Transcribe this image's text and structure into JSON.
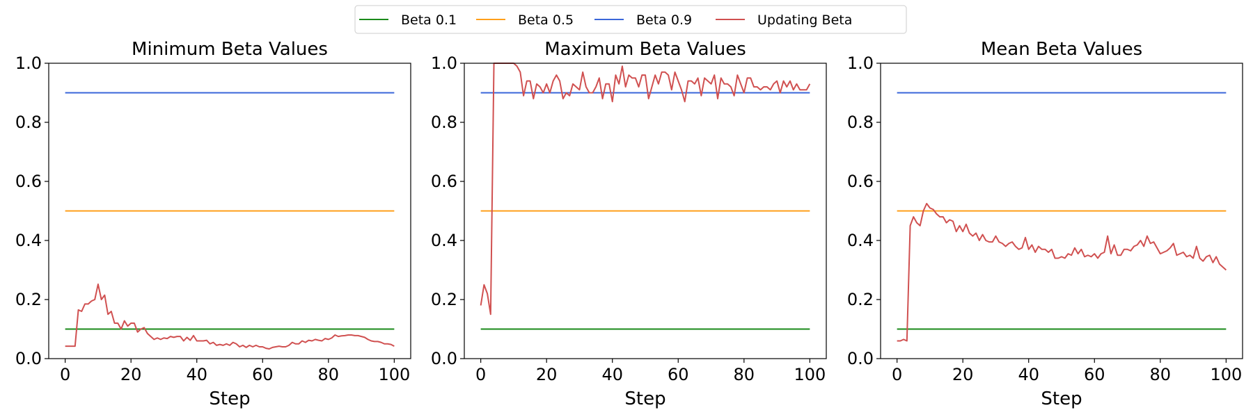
{
  "legend": {
    "placement": "top-center",
    "entries": [
      {
        "label": "Beta 0.1",
        "color": "#1a8a1a"
      },
      {
        "label": "Beta 0.5",
        "color": "#ff9f1a"
      },
      {
        "label": "Beta 0.9",
        "color": "#3a66d9"
      },
      {
        "label": "Updating Beta",
        "color": "#d05050"
      }
    ]
  },
  "chart_data": [
    {
      "type": "line",
      "title": "Minimum Beta Values",
      "xlabel": "Step",
      "ylabel": "",
      "xlim": [
        0,
        100
      ],
      "ylim": [
        0,
        1.0
      ],
      "xticks": [
        "0",
        "20",
        "40",
        "60",
        "80",
        "100"
      ],
      "yticks": [
        "0.0",
        "0.2",
        "0.4",
        "0.6",
        "0.8",
        "1.0"
      ],
      "grid": false,
      "series": [
        {
          "name": "Beta 0.1",
          "color": "#1a8a1a",
          "x": [
            0,
            100
          ],
          "y": [
            0.1,
            0.1
          ]
        },
        {
          "name": "Beta 0.5",
          "color": "#ff9f1a",
          "x": [
            0,
            100
          ],
          "y": [
            0.5,
            0.5
          ]
        },
        {
          "name": "Beta 0.9",
          "color": "#3a66d9",
          "x": [
            0,
            100
          ],
          "y": [
            0.9,
            0.9
          ]
        },
        {
          "name": "Updating Beta",
          "color": "#d05050",
          "x": [
            0,
            1,
            2,
            3,
            4,
            5,
            6,
            7,
            8,
            9,
            10,
            11,
            12,
            13,
            14,
            15,
            16,
            17,
            18,
            19,
            20,
            21,
            22,
            23,
            24,
            25,
            26,
            27,
            28,
            29,
            30,
            31,
            32,
            33,
            34,
            35,
            36,
            37,
            38,
            39,
            40,
            41,
            42,
            43,
            44,
            45,
            46,
            47,
            48,
            49,
            50,
            51,
            52,
            53,
            54,
            55,
            56,
            57,
            58,
            59,
            60,
            61,
            62,
            63,
            64,
            65,
            66,
            67,
            68,
            69,
            70,
            71,
            72,
            73,
            74,
            75,
            76,
            77,
            78,
            79,
            80,
            81,
            82,
            83,
            84,
            85,
            86,
            87,
            88,
            89,
            90,
            91,
            92,
            93,
            94,
            95,
            96,
            97,
            98,
            99,
            100
          ],
          "y": [
            0.042,
            0.042,
            0.042,
            0.042,
            0.165,
            0.16,
            0.185,
            0.185,
            0.195,
            0.2,
            0.252,
            0.2,
            0.215,
            0.15,
            0.16,
            0.12,
            0.12,
            0.1,
            0.128,
            0.11,
            0.12,
            0.12,
            0.09,
            0.1,
            0.105,
            0.085,
            0.075,
            0.065,
            0.07,
            0.065,
            0.07,
            0.068,
            0.075,
            0.072,
            0.075,
            0.075,
            0.06,
            0.072,
            0.062,
            0.078,
            0.06,
            0.06,
            0.06,
            0.062,
            0.05,
            0.055,
            0.045,
            0.048,
            0.045,
            0.05,
            0.045,
            0.055,
            0.05,
            0.04,
            0.045,
            0.038,
            0.045,
            0.04,
            0.045,
            0.04,
            0.04,
            0.035,
            0.033,
            0.038,
            0.04,
            0.042,
            0.04,
            0.04,
            0.045,
            0.055,
            0.05,
            0.05,
            0.06,
            0.055,
            0.062,
            0.06,
            0.065,
            0.062,
            0.06,
            0.068,
            0.065,
            0.07,
            0.08,
            0.075,
            0.077,
            0.078,
            0.08,
            0.08,
            0.078,
            0.078,
            0.075,
            0.072,
            0.065,
            0.06,
            0.058,
            0.058,
            0.055,
            0.05,
            0.05,
            0.048,
            0.042
          ]
        }
      ]
    },
    {
      "type": "line",
      "title": "Maximum Beta Values",
      "xlabel": "Step",
      "ylabel": "",
      "xlim": [
        0,
        100
      ],
      "ylim": [
        0,
        1.0
      ],
      "xticks": [
        "0",
        "20",
        "40",
        "60",
        "80",
        "100"
      ],
      "yticks": [
        "0.0",
        "0.2",
        "0.4",
        "0.6",
        "0.8",
        "1.0"
      ],
      "grid": false,
      "series": [
        {
          "name": "Beta 0.1",
          "color": "#1a8a1a",
          "x": [
            0,
            100
          ],
          "y": [
            0.1,
            0.1
          ]
        },
        {
          "name": "Beta 0.5",
          "color": "#ff9f1a",
          "x": [
            0,
            100
          ],
          "y": [
            0.5,
            0.5
          ]
        },
        {
          "name": "Beta 0.9",
          "color": "#3a66d9",
          "x": [
            0,
            100
          ],
          "y": [
            0.9,
            0.9
          ]
        },
        {
          "name": "Updating Beta",
          "color": "#d05050",
          "x": [
            0,
            1,
            2,
            3,
            4,
            5,
            6,
            7,
            8,
            9,
            10,
            11,
            12,
            13,
            14,
            15,
            16,
            17,
            18,
            19,
            20,
            21,
            22,
            23,
            24,
            25,
            26,
            27,
            28,
            29,
            30,
            31,
            32,
            33,
            34,
            35,
            36,
            37,
            38,
            39,
            40,
            41,
            42,
            43,
            44,
            45,
            46,
            47,
            48,
            49,
            50,
            51,
            52,
            53,
            54,
            55,
            56,
            57,
            58,
            59,
            60,
            61,
            62,
            63,
            64,
            65,
            66,
            67,
            68,
            69,
            70,
            71,
            72,
            73,
            74,
            75,
            76,
            77,
            78,
            79,
            80,
            81,
            82,
            83,
            84,
            85,
            86,
            87,
            88,
            89,
            90,
            91,
            92,
            93,
            94,
            95,
            96,
            97,
            98,
            99,
            100
          ],
          "y": [
            0.18,
            0.25,
            0.22,
            0.15,
            1.0,
            1.0,
            1.0,
            1.0,
            1.0,
            1.0,
            1.0,
            0.99,
            0.97,
            0.89,
            0.94,
            0.94,
            0.88,
            0.93,
            0.92,
            0.9,
            0.93,
            0.9,
            0.94,
            0.96,
            0.94,
            0.88,
            0.9,
            0.89,
            0.93,
            0.92,
            0.91,
            0.97,
            0.92,
            0.9,
            0.9,
            0.92,
            0.95,
            0.88,
            0.93,
            0.93,
            0.87,
            0.96,
            0.93,
            0.99,
            0.92,
            0.96,
            0.95,
            0.95,
            0.92,
            0.96,
            0.96,
            0.88,
            0.92,
            0.96,
            0.93,
            0.97,
            0.97,
            0.96,
            0.91,
            0.97,
            0.94,
            0.91,
            0.87,
            0.94,
            0.94,
            0.93,
            0.95,
            0.89,
            0.95,
            0.94,
            0.93,
            0.96,
            0.88,
            0.95,
            0.93,
            0.93,
            0.92,
            0.89,
            0.96,
            0.93,
            0.9,
            0.95,
            0.95,
            0.92,
            0.92,
            0.91,
            0.92,
            0.92,
            0.91,
            0.93,
            0.94,
            0.9,
            0.94,
            0.92,
            0.94,
            0.91,
            0.93,
            0.91,
            0.91,
            0.91,
            0.93
          ]
        }
      ]
    },
    {
      "type": "line",
      "title": "Mean Beta Values",
      "xlabel": "Step",
      "ylabel": "",
      "xlim": [
        0,
        100
      ],
      "ylim": [
        0,
        1.0
      ],
      "xticks": [
        "0",
        "20",
        "40",
        "60",
        "80",
        "100"
      ],
      "yticks": [
        "0.0",
        "0.2",
        "0.4",
        "0.6",
        "0.8",
        "1.0"
      ],
      "grid": false,
      "series": [
        {
          "name": "Beta 0.1",
          "color": "#1a8a1a",
          "x": [
            0,
            100
          ],
          "y": [
            0.1,
            0.1
          ]
        },
        {
          "name": "Beta 0.5",
          "color": "#ff9f1a",
          "x": [
            0,
            100
          ],
          "y": [
            0.5,
            0.5
          ]
        },
        {
          "name": "Beta 0.9",
          "color": "#3a66d9",
          "x": [
            0,
            100
          ],
          "y": [
            0.9,
            0.9
          ]
        },
        {
          "name": "Updating Beta",
          "color": "#d05050",
          "x": [
            0,
            1,
            2,
            3,
            4,
            5,
            6,
            7,
            8,
            9,
            10,
            11,
            12,
            13,
            14,
            15,
            16,
            17,
            18,
            19,
            20,
            21,
            22,
            23,
            24,
            25,
            26,
            27,
            28,
            29,
            30,
            31,
            32,
            33,
            34,
            35,
            36,
            37,
            38,
            39,
            40,
            41,
            42,
            43,
            44,
            45,
            46,
            47,
            48,
            49,
            50,
            51,
            52,
            53,
            54,
            55,
            56,
            57,
            58,
            59,
            60,
            61,
            62,
            63,
            64,
            65,
            66,
            67,
            68,
            69,
            70,
            71,
            72,
            73,
            74,
            75,
            76,
            77,
            78,
            79,
            80,
            81,
            82,
            83,
            84,
            85,
            86,
            87,
            88,
            89,
            90,
            91,
            92,
            93,
            94,
            95,
            96,
            97,
            98,
            99,
            100
          ],
          "y": [
            0.06,
            0.06,
            0.065,
            0.06,
            0.45,
            0.48,
            0.46,
            0.45,
            0.5,
            0.525,
            0.51,
            0.505,
            0.49,
            0.48,
            0.48,
            0.46,
            0.47,
            0.465,
            0.43,
            0.45,
            0.43,
            0.455,
            0.425,
            0.415,
            0.425,
            0.4,
            0.42,
            0.4,
            0.395,
            0.395,
            0.415,
            0.395,
            0.39,
            0.38,
            0.39,
            0.395,
            0.38,
            0.37,
            0.375,
            0.41,
            0.37,
            0.385,
            0.36,
            0.38,
            0.37,
            0.37,
            0.36,
            0.37,
            0.34,
            0.34,
            0.345,
            0.34,
            0.355,
            0.35,
            0.375,
            0.355,
            0.37,
            0.345,
            0.35,
            0.345,
            0.355,
            0.34,
            0.355,
            0.36,
            0.415,
            0.355,
            0.385,
            0.35,
            0.35,
            0.37,
            0.37,
            0.365,
            0.38,
            0.385,
            0.4,
            0.38,
            0.415,
            0.39,
            0.395,
            0.375,
            0.355,
            0.36,
            0.365,
            0.375,
            0.39,
            0.35,
            0.355,
            0.36,
            0.345,
            0.35,
            0.34,
            0.38,
            0.34,
            0.33,
            0.345,
            0.35,
            0.325,
            0.345,
            0.32,
            0.31,
            0.3
          ]
        }
      ]
    }
  ]
}
